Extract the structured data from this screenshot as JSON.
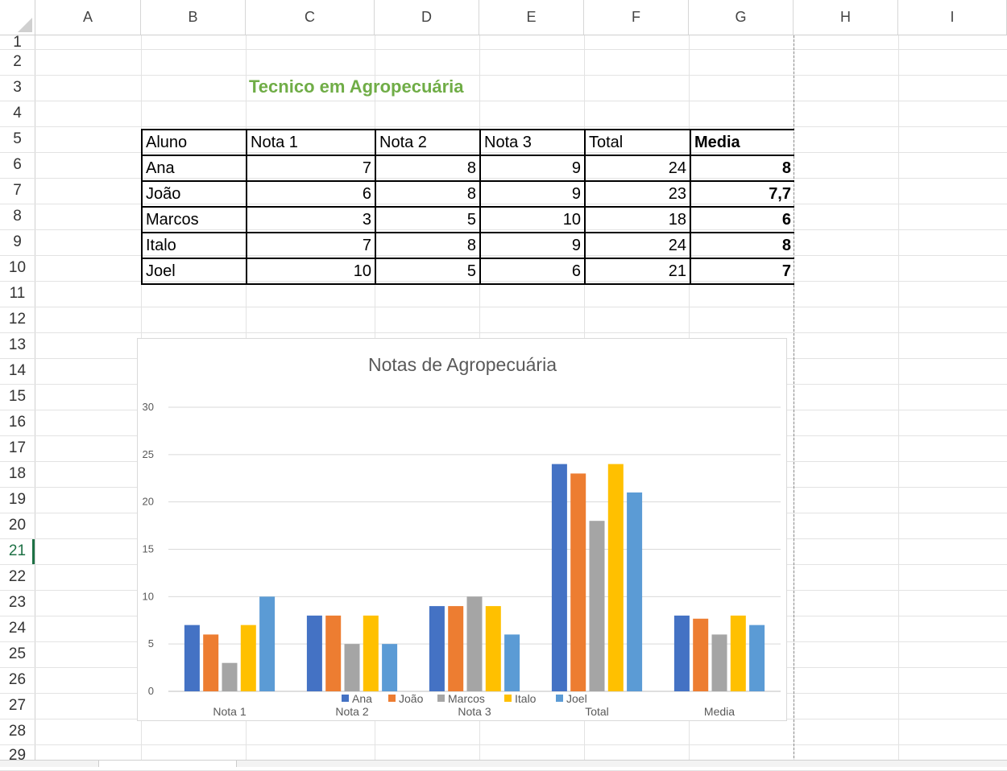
{
  "columns": [
    "A",
    "B",
    "C",
    "D",
    "E",
    "F",
    "G",
    "H",
    "I"
  ],
  "rows": [
    "1",
    "2",
    "3",
    "4",
    "5",
    "6",
    "7",
    "8",
    "9",
    "10",
    "11",
    "12",
    "13",
    "14",
    "15",
    "16",
    "17",
    "18",
    "19",
    "20",
    "21",
    "22",
    "23",
    "24",
    "25",
    "26",
    "27",
    "28",
    "29"
  ],
  "active_row": "21",
  "sheet_title": "Tecnico em Agropecuária",
  "table": {
    "headers": [
      "Aluno",
      "Nota 1",
      "Nota 2",
      "Nota 3",
      "Total",
      "Media"
    ],
    "rows": [
      [
        "Ana",
        "7",
        "8",
        "9",
        "24",
        "8"
      ],
      [
        "João",
        "6",
        "8",
        "9",
        "23",
        "7,7"
      ],
      [
        "Marcos",
        "3",
        "5",
        "10",
        "18",
        "6"
      ],
      [
        "Italo",
        "7",
        "8",
        "9",
        "24",
        "8"
      ],
      [
        "Joel",
        "10",
        "5",
        "6",
        "21",
        "7"
      ]
    ]
  },
  "chart_data": {
    "type": "bar",
    "title": "Notas de Agropecuária",
    "categories": [
      "Nota 1",
      "Nota 2",
      "Nota 3",
      "Total",
      "Media"
    ],
    "series": [
      {
        "name": "Ana",
        "color": "#4472c4",
        "values": [
          7,
          8,
          9,
          24,
          8
        ]
      },
      {
        "name": "João",
        "color": "#ed7d31",
        "values": [
          6,
          8,
          9,
          23,
          7.67
        ]
      },
      {
        "name": "Marcos",
        "color": "#a5a5a5",
        "values": [
          3,
          5,
          10,
          18,
          6
        ]
      },
      {
        "name": "Italo",
        "color": "#ffc000",
        "values": [
          7,
          8,
          9,
          24,
          8
        ]
      },
      {
        "name": "Joel",
        "color": "#5b9bd5",
        "values": [
          10,
          5,
          6,
          21,
          7
        ]
      }
    ],
    "ylim": [
      0,
      30
    ],
    "yticks": [
      0,
      5,
      10,
      15,
      20,
      25,
      30
    ],
    "legend": "bottom",
    "grid": true
  }
}
